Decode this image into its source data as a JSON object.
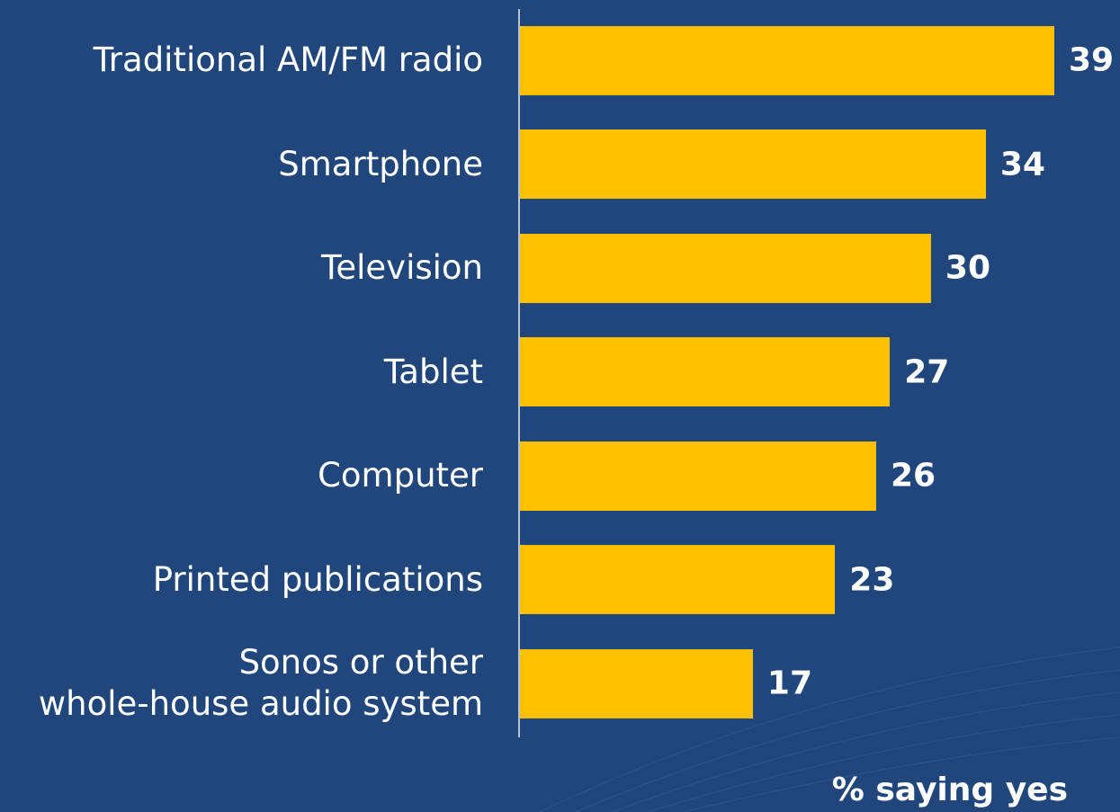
{
  "chart_data": {
    "type": "bar",
    "orientation": "horizontal",
    "categories": [
      "Traditional AM/FM radio",
      "Smartphone",
      "Television",
      "Tablet",
      "Computer",
      "Printed publications",
      "Sonos or other\nwhole-house audio system"
    ],
    "values": [
      39,
      34,
      30,
      27,
      26,
      23,
      17
    ],
    "color": "#ffc000",
    "xlabel": "% saying yes"
  }
}
